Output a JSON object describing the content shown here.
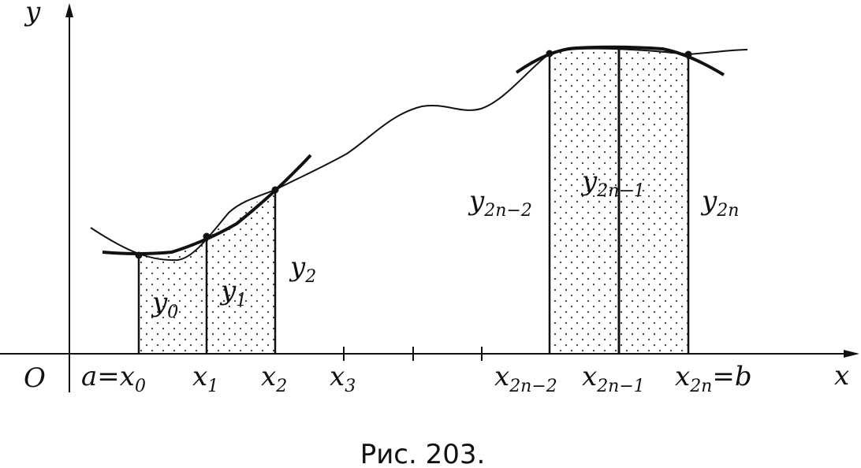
{
  "axes": {
    "y_label": "y",
    "x_label": "x",
    "origin_label": "O"
  },
  "x_ticks": [
    {
      "main": "a",
      "eq": "=",
      "base": "x",
      "sub": "0"
    },
    {
      "base": "x",
      "sub": "1"
    },
    {
      "base": "x",
      "sub": "2"
    },
    {
      "base": "x",
      "sub": "3"
    },
    {
      "base": "x",
      "sub": "2n−2"
    },
    {
      "base": "x",
      "sub": "2n−1"
    },
    {
      "base": "x",
      "sub": "2n",
      "eq": "=",
      "tail": "b"
    }
  ],
  "ordinates": [
    {
      "base": "y",
      "sub": "0"
    },
    {
      "base": "y",
      "sub": "1"
    },
    {
      "base": "y",
      "sub": "2"
    },
    {
      "base": "y",
      "sub": "2n−2"
    },
    {
      "base": "y",
      "sub": "2n−1"
    },
    {
      "base": "y",
      "sub": "2n"
    }
  ],
  "caption": "Рис. 203."
}
